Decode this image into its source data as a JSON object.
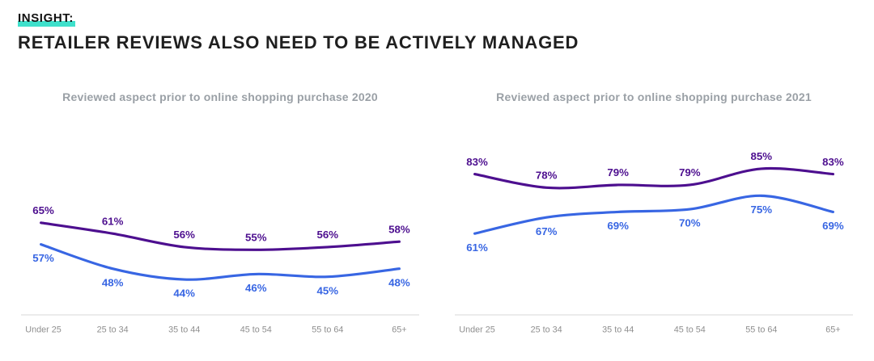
{
  "header": {
    "eyebrow": "INSIGHT:",
    "title": "RETAILER REVIEWS ALSO NEED TO BE ACTIVELY MANAGED",
    "highlight_color": "#3FE0CB"
  },
  "colors": {
    "purple": "#4D0F8F",
    "blue": "#3866E3",
    "axis_text": "#8f8f8f",
    "axis_line": "#dcdcdc",
    "caption_gray": "#9aa0a6"
  },
  "chart_data": [
    {
      "type": "line",
      "title": "Reviewed aspect prior to online shopping purchase 2020",
      "categories": [
        "Under 25",
        "25 to 34",
        "35 to 44",
        "45 to 54",
        "55 to 64",
        "65+"
      ],
      "series": [
        {
          "name": "purple-series",
          "color": "#4D0F8F",
          "values": [
            65,
            61,
            56,
            55,
            56,
            58
          ],
          "label_position": "above"
        },
        {
          "name": "blue-series",
          "color": "#3866E3",
          "values": [
            57,
            48,
            44,
            46,
            45,
            48
          ],
          "label_position": "below"
        }
      ],
      "ylim": [
        35,
        95
      ],
      "grid": false,
      "legend": "none",
      "label_format": "percent"
    },
    {
      "type": "line",
      "title": "Reviewed aspect prior to online shopping purchase 2021",
      "categories": [
        "Under 25",
        "25 to 34",
        "35 to 44",
        "45 to 54",
        "55 to 64",
        "65+"
      ],
      "series": [
        {
          "name": "purple-series",
          "color": "#4D0F8F",
          "values": [
            83,
            78,
            79,
            79,
            85,
            83
          ],
          "label_position": "above"
        },
        {
          "name": "blue-series",
          "color": "#3866E3",
          "values": [
            61,
            67,
            69,
            70,
            75,
            69
          ],
          "label_position": "below"
        }
      ],
      "ylim": [
        35,
        95
      ],
      "grid": false,
      "legend": "none",
      "label_format": "percent"
    }
  ]
}
